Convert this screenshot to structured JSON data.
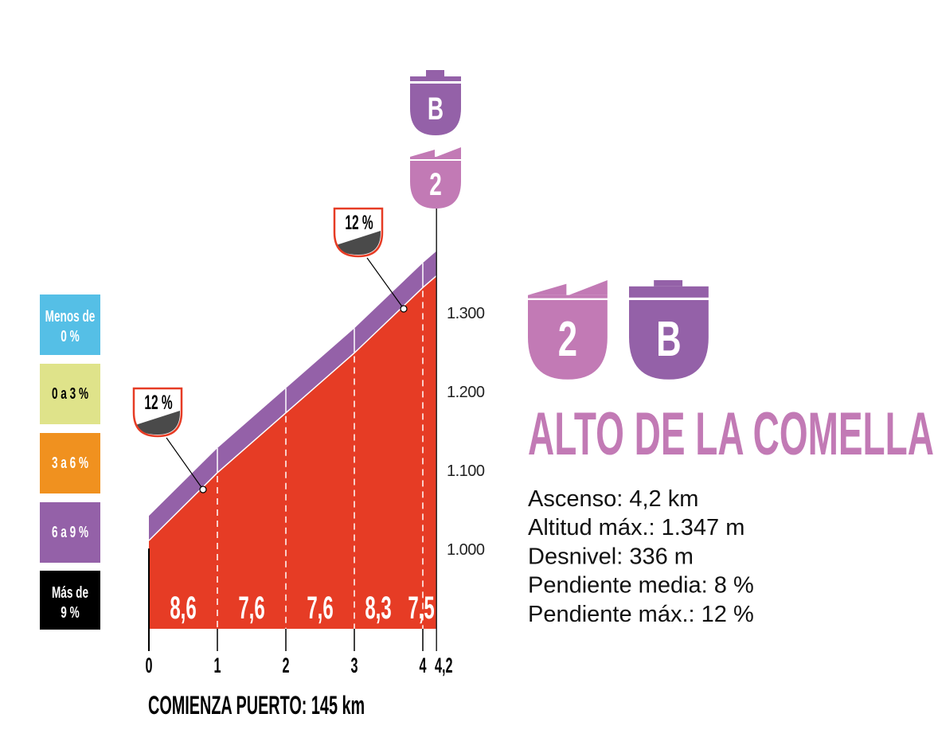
{
  "chart_data": {
    "type": "area",
    "title": "ALTO DE LA COMELLA",
    "x_ticks": [
      "0",
      "1",
      "2",
      "3",
      "4",
      "4,2"
    ],
    "x": [
      0,
      1,
      2,
      3,
      4,
      4.2
    ],
    "elevation_m": [
      1011,
      1097,
      1173,
      1249,
      1332,
      1347
    ],
    "y_ticks": [
      "1.000",
      "1.100",
      "1.200",
      "1.300"
    ],
    "ylim": [
      1000,
      1347
    ],
    "segment_gradients": [
      "8,6",
      "7,6",
      "7,6",
      "8,3",
      "7,5"
    ],
    "segment_color": "#e63c25",
    "gradient_markers": [
      {
        "label": "12 %",
        "km": 0.8
      },
      {
        "label": "12 %",
        "km": 3.75
      }
    ],
    "legend": [
      {
        "label_lines": [
          "Menos de",
          "0 %"
        ],
        "color": "#55bfe6",
        "text_color": "#ffffff"
      },
      {
        "label_lines": [
          "0 a 3 %"
        ],
        "color": "#dfe38a",
        "text_color": "#000000"
      },
      {
        "label_lines": [
          "3 a 6 %"
        ],
        "color": "#f0911f",
        "text_color": "#ffffff"
      },
      {
        "label_lines": [
          "6 a 9 %"
        ],
        "color": "#9461a8",
        "text_color": "#ffffff"
      },
      {
        "label_lines": [
          "Más de",
          "9 %"
        ],
        "color": "#000000",
        "text_color": "#ffffff"
      }
    ],
    "grid": false
  },
  "badges": {
    "category": "2",
    "category_color": "#c27ab5",
    "sector": "B",
    "sector_color": "#9461a8"
  },
  "info": {
    "name": "ALTO DE LA COMELLA",
    "name_color": "#c27ab5",
    "stats": [
      "Ascenso: 4,2 km",
      "Altitud máx.: 1.347 m",
      "Desnivel: 336 m",
      "Pendiente media: 8 %",
      "Pendiente máx.: 12 %"
    ]
  },
  "footer": {
    "start_label": "COMIENZA PUERTO: 145 km"
  }
}
